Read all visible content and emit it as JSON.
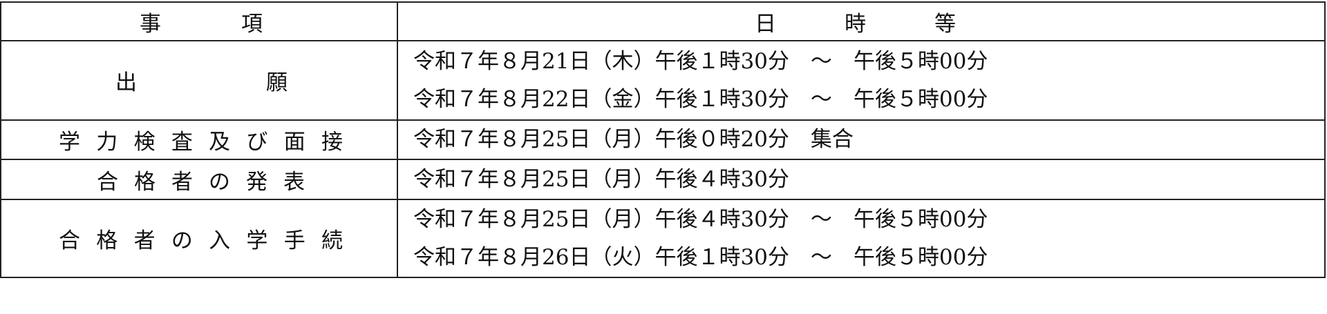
{
  "table": {
    "header": [
      "事項",
      "日時等"
    ],
    "rows": [
      {
        "item": "出願",
        "dates": [
          "令和７年８月21日（木）午後１時30分　～　午後５時00分",
          "令和７年８月22日（金）午後１時30分　～　午後５時00分"
        ]
      },
      {
        "item": "学力検査及び面接",
        "dates": [
          "令和７年８月25日（月）午後０時20分　集合"
        ]
      },
      {
        "item": "合格者の発表",
        "dates": [
          "令和７年８月25日（月）午後４時30分"
        ]
      },
      {
        "item": "合格者の入学手続",
        "dates": [
          "令和７年８月25日（月）午後４時30分　～　午後５時00分",
          "令和７年８月26日（火）午後１時30分　～　午後５時00分"
        ]
      }
    ]
  }
}
